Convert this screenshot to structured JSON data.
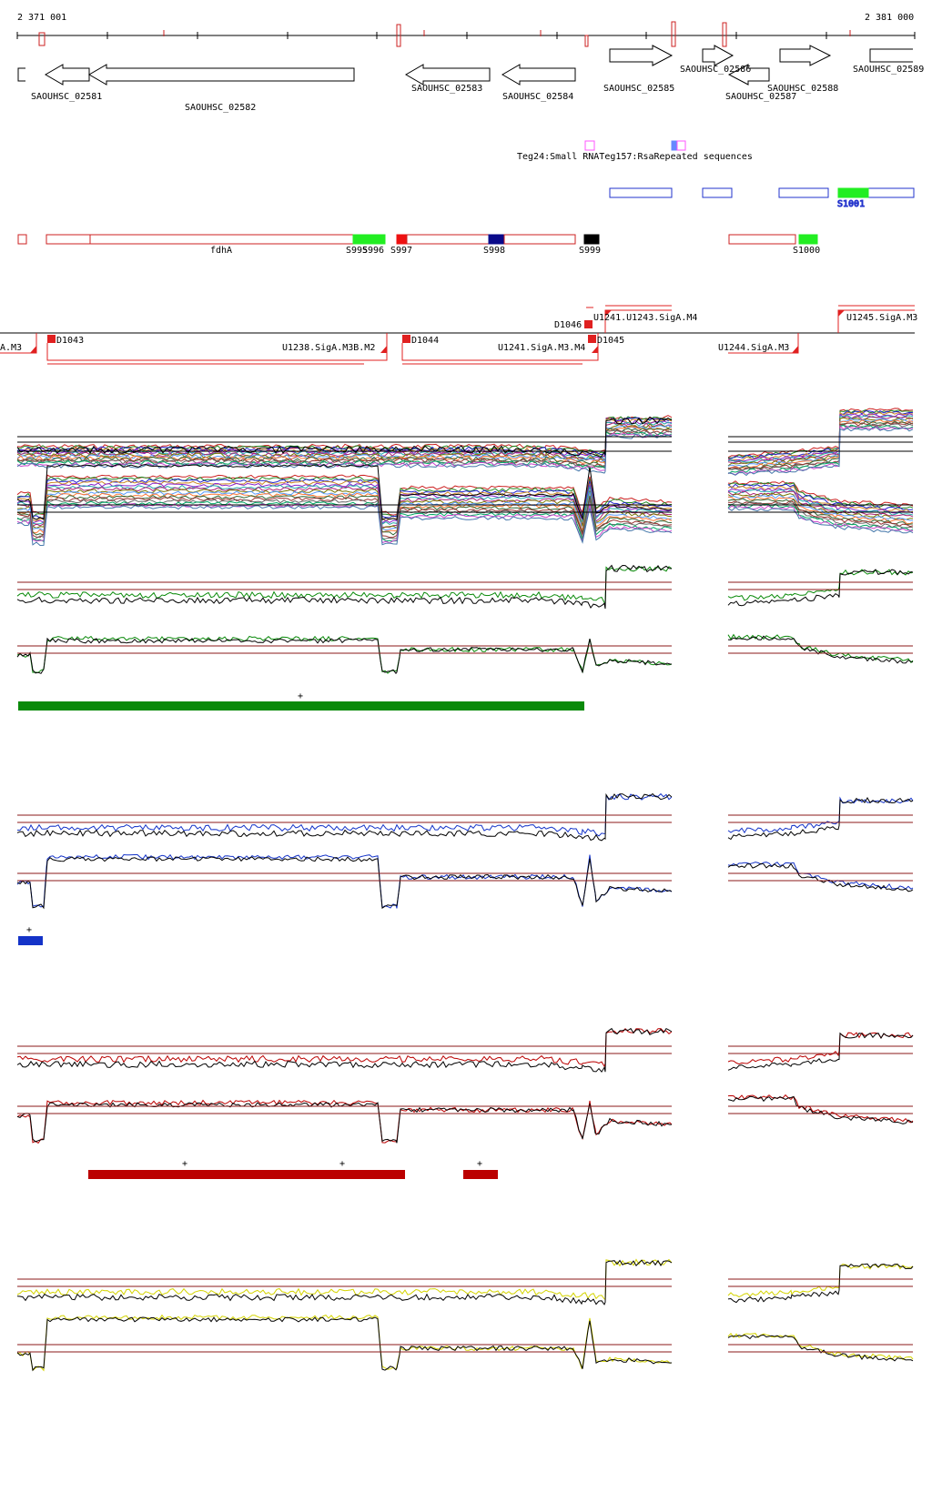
{
  "ruler": {
    "start_label": "2 371 001",
    "end_label": "2 381 000"
  },
  "genes": {
    "g1": "SAOUHSC_02581",
    "g2": "SAOUHSC_02582",
    "g3": "SAOUHSC_02583",
    "g4": "SAOUHSC_02584",
    "g5": "SAOUHSC_02585",
    "g6": "SAOUHSC_02586",
    "g7": "SAOUHSC_02587",
    "g8": "SAOUHSC_02588",
    "g9": "SAOUHSC_02589"
  },
  "features": {
    "overlap_text": "Teg24:Small RNATeg157:RsaRepeated sequences"
  },
  "segments": {
    "fdha": "fdhA",
    "s995": "S995",
    "s996": "S996",
    "s997": "S997",
    "s998": "S998",
    "s999": "S999",
    "s1000": "S1000",
    "s1001": "S1001"
  },
  "tu": {
    "d1043": "D1043",
    "d1044": "D1044",
    "d1045": "D1045",
    "d1046": "D1046",
    "u1239_label": "U1238.SigA.M3B.M2",
    "u1240_label": "U1241.SigA.M3.M4",
    "u1241_top": "U1241.U1243.SigA.M4",
    "u1244": "U1244.SigA.M3",
    "u1245": "U1245.SigA.M3",
    "left_cut": "A.M3"
  },
  "conditions": {
    "green_marker": "+",
    "blue_marker": "+",
    "red_marker_1": "+",
    "red_marker_2": "+",
    "red_marker_3": "+"
  },
  "colors": {
    "gene_outline": "#000000",
    "segment_outline": "#cc2222",
    "transcription_unit": "#e02020",
    "green_condition": "#0a8a0a",
    "blue_condition": "#1433c8",
    "red_condition": "#bb0000",
    "yellow_condition": "#d4d400",
    "threshold_line": "#8b1a1a",
    "s_green": "#22ee22",
    "s_red": "#ee1111",
    "s_navy": "#0a0a8a",
    "s_black": "#000000",
    "small_rna": "#ff55ff",
    "repeated": "#6688ff",
    "coverage_blue": "#2233cc"
  }
}
